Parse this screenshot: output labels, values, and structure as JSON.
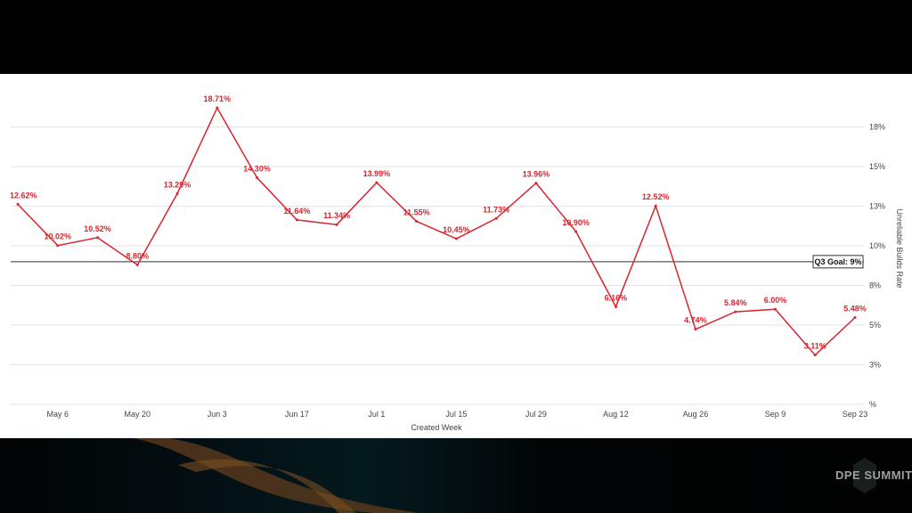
{
  "colors": {
    "line": "#d7262e",
    "label": "#d7262e",
    "grid": "#e3e3e3",
    "goal_line": "#333333",
    "axis_text": "#444444"
  },
  "goal": {
    "label": "Q3 Goal: 9%",
    "value": 9
  },
  "logo": {
    "text": "DPE SUMMIT"
  },
  "chart_data": {
    "type": "line",
    "xlabel": "Created Week",
    "ylabel": "Unreliable Builds Rate",
    "ylim": [
      0,
      19.5
    ],
    "yticks": [
      {
        "value": 0,
        "label": "%"
      },
      {
        "value": 2.5,
        "label": "3%"
      },
      {
        "value": 5,
        "label": "5%"
      },
      {
        "value": 7.5,
        "label": "8%"
      },
      {
        "value": 10,
        "label": "10%"
      },
      {
        "value": 12.5,
        "label": "13%"
      },
      {
        "value": 15,
        "label": "15%"
      },
      {
        "value": 17.5,
        "label": "18%"
      }
    ],
    "xticks": [
      "May 6",
      "May 20",
      "Jun 3",
      "Jun 17",
      "Jul 1",
      "Jul 15",
      "Jul 29",
      "Aug 12",
      "Aug 26",
      "Sep 9",
      "Sep 23"
    ],
    "series": [
      {
        "values": [
          12.62,
          10.02,
          10.52,
          8.8,
          13.29,
          18.71,
          14.3,
          11.64,
          11.34,
          13.99,
          11.55,
          10.45,
          11.73,
          13.96,
          10.9,
          6.16,
          12.52,
          4.74,
          5.84,
          6.0,
          3.11,
          5.48
        ],
        "labels": [
          "12.62%",
          "10.02%",
          "10.52%",
          "8.80%",
          "13.29%",
          "18.71%",
          "14.30%",
          "11.64%",
          "11.34%",
          "13.99%",
          "11.55%",
          "10.45%",
          "11.73%",
          "13.96%",
          "10.90%",
          "6.16%",
          "12.52%",
          "4.74%",
          "5.84%",
          "6.00%",
          "3.11%",
          "5.48%"
        ]
      }
    ]
  }
}
